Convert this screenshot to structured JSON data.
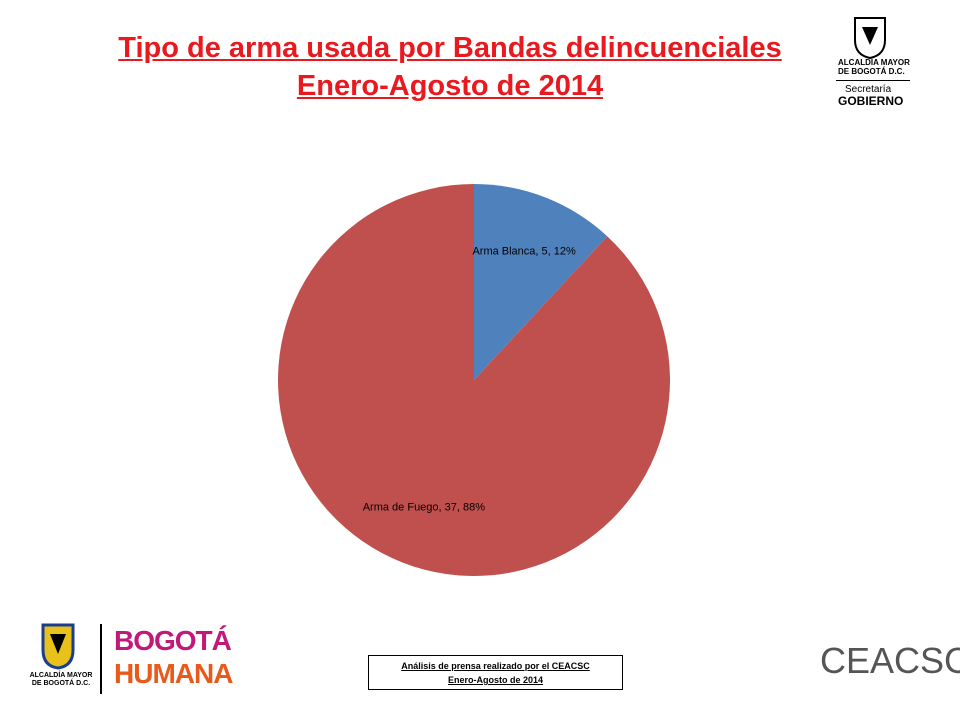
{
  "chart_data": {
    "type": "pie",
    "title": "Tipo de arma usada por Bandas delincuenciales",
    "subtitle": "Enero-Agosto de 2014",
    "categories": [
      "Arma Blanca",
      "Arma de Fuego"
    ],
    "values": [
      5,
      37
    ],
    "value_labels": [
      "Arma Blanca, 5, 12%",
      "Arma de Fuego, 37, 88%"
    ],
    "colors": [
      "#4f81bd",
      "#c0504d"
    ]
  },
  "logos": {
    "alcaldia": "ALCALDÍA MAYOR DE BOGOTÁ D.C.",
    "secretaria": "Secretaría",
    "gobierno": "GOBIERNO",
    "bogota": "BOGOTÁ",
    "humana": "HUMANA",
    "ceacsc": "CEACSC"
  },
  "footer": [
    "Análisis de prensa realizado por el CEACSC",
    "Enero-Agosto de 2014"
  ]
}
